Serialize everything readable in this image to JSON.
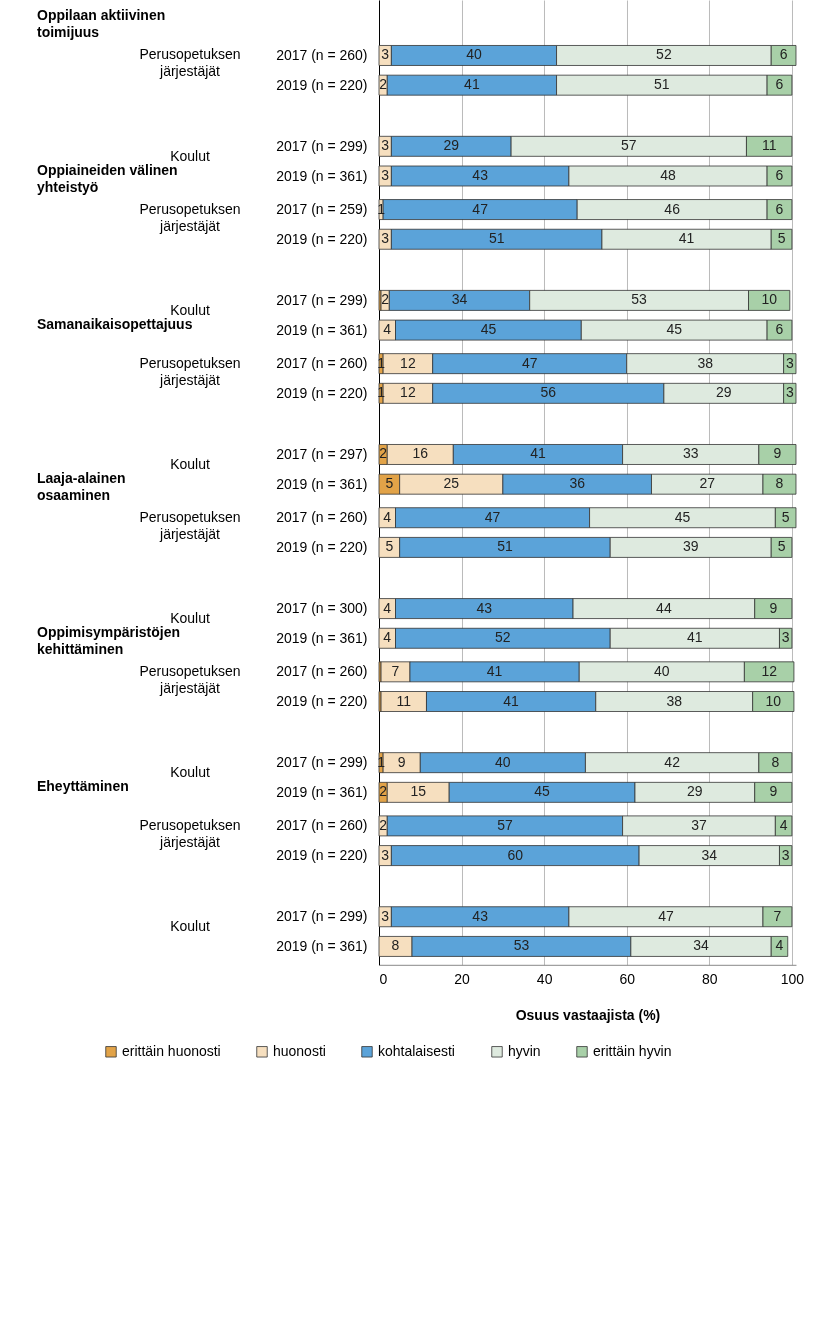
{
  "chart_data": {
    "type": "bar",
    "orientation": "horizontal",
    "stacked": true,
    "xlabel": "Osuus vastaajista (%)",
    "categories": [
      "2017 (n = 260)",
      "2019 (n = 220)",
      "2017 (n = 299)",
      "2019 (n = 361)",
      "2017 (n = 259)",
      "2019 (n = 220)",
      "2017 (n = 299)",
      "2019 (n = 361)",
      "2017 (n = 260)",
      "2019 (n = 220)",
      "2017 (n = 297)",
      "2019 (n = 361)",
      "2017 (n = 260)",
      "2019 (n = 220)",
      "2017 (n = 300)",
      "2019 (n = 361)",
      "2017 (n = 260)",
      "2019 (n = 220)",
      "2017 (n = 299)",
      "2019 (n = 361)",
      "2017 (n = 260)",
      "2019 (n = 220)",
      "2017 (n = 299)",
      "2019 (n = 361)"
    ],
    "series": [
      {
        "name": "erittäin huonosti",
        "color": "#e2a348",
        "values": [
          null,
          null,
          null,
          null,
          null,
          null,
          0.5,
          null,
          1,
          1,
          2,
          5,
          null,
          null,
          null,
          null,
          0.5,
          0.5,
          1,
          2,
          null,
          null,
          null,
          null
        ],
        "value_labels": [
          null,
          null,
          null,
          null,
          null,
          null,
          null,
          null,
          "1",
          "1",
          "2",
          "5",
          null,
          null,
          null,
          null,
          null,
          null,
          "1",
          "2",
          null,
          null,
          null,
          null
        ]
      },
      {
        "name": "huonosti",
        "color": "#f6dfbf",
        "values": [
          3,
          2,
          3,
          3,
          1,
          3,
          2,
          4,
          12,
          12,
          16,
          25,
          4,
          5,
          4,
          4,
          7,
          11,
          9,
          15,
          2,
          3,
          3,
          8
        ],
        "value_labels": [
          "3",
          "2",
          "3",
          "3",
          "1",
          "3",
          "2",
          "4",
          "12",
          "12",
          "16",
          "25",
          "4",
          "5",
          "4",
          "4",
          "7",
          "11",
          "9",
          "15",
          "2",
          "3",
          "3",
          "8"
        ]
      },
      {
        "name": "kohtalaisesti",
        "color": "#5ba3d9",
        "values": [
          40,
          41,
          29,
          43,
          47,
          51,
          34,
          45,
          47,
          56,
          41,
          36,
          47,
          51,
          43,
          52,
          41,
          41,
          40,
          45,
          57,
          60,
          43,
          53
        ],
        "value_labels": [
          "40",
          "41",
          "29",
          "43",
          "47",
          "51",
          "34",
          "45",
          "47",
          "56",
          "41",
          "36",
          "47",
          "51",
          "43",
          "52",
          "41",
          "41",
          "40",
          "45",
          "57",
          "60",
          "43",
          "53"
        ]
      },
      {
        "name": "hyvin",
        "color": "#deeadf",
        "values": [
          52,
          51,
          57,
          48,
          46,
          41,
          53,
          45,
          38,
          29,
          33,
          27,
          45,
          39,
          44,
          41,
          40,
          38,
          42,
          29,
          37,
          34,
          47,
          34
        ],
        "value_labels": [
          "52",
          "51",
          "57",
          "48",
          "46",
          "41",
          "53",
          "45",
          "38",
          "29",
          "33",
          "27",
          "45",
          "39",
          "44",
          "41",
          "40",
          "38",
          "42",
          "29",
          "37",
          "34",
          "47",
          "34"
        ]
      },
      {
        "name": "erittäin hyvin",
        "color": "#a8d0a8",
        "values": [
          6,
          6,
          11,
          6,
          6,
          5,
          10,
          6,
          3,
          3,
          9,
          8,
          5,
          5,
          9,
          3,
          12,
          10,
          8,
          9,
          4,
          3,
          7,
          4
        ],
        "value_labels": [
          "6",
          "6",
          "11",
          "6",
          "6",
          "5",
          "10",
          "6",
          "3",
          "3",
          "9",
          "8",
          "5",
          "5",
          "9",
          "3",
          "12",
          "10",
          "8",
          "9",
          "4",
          "3",
          "7",
          "4"
        ]
      }
    ],
    "xlim": [
      0,
      101
    ],
    "xticks": [
      0,
      20,
      40,
      60,
      80,
      100
    ],
    "grid": "x",
    "legend": "bottom",
    "annotations": [
      "Oppilaan aktiivinen toimijuus",
      "Perusopetuksen järjestäjät",
      "Koulut",
      "Oppiaineiden välinen yhteistyö",
      "Perusopetuksen järjestäjät",
      "Koulut",
      "Samanaikaisopettajuus",
      "Perusopetuksen järjestäjät",
      "Koulut",
      "Laaja-alainen osaaminen",
      "Perusopetuksen järjestäjät",
      "Koulut",
      "Oppimisympäristöjen kehittäminen",
      "Perusopetuksen järjestäjät",
      "Koulut",
      "Eheyttäminen",
      "Perusopetuksen järjestäjät",
      "Koulut"
    ]
  }
}
